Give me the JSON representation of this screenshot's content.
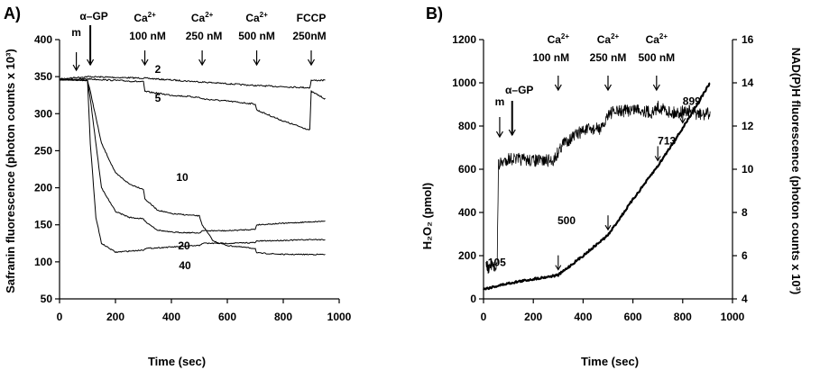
{
  "chart_data": [
    {
      "panel_label": "A)",
      "type": "line",
      "xlabel": "Time (sec)",
      "ylabel": "Safranin fluorescence (photon counts x 10³)",
      "xlim": [
        0,
        1000
      ],
      "ylim": [
        50,
        400
      ],
      "xticks": [
        0,
        200,
        400,
        600,
        800,
        1000
      ],
      "yticks": [
        50,
        100,
        150,
        200,
        250,
        300,
        350,
        400
      ],
      "grid": false,
      "additions": [
        {
          "label": "m",
          "x": 60
        },
        {
          "label": "α–GP",
          "x": 110
        },
        {
          "label": "Ca",
          "sup": "2+",
          "sub": "100 nM",
          "x": 305
        },
        {
          "label": "Ca",
          "sup": "2+",
          "sub": "250 nM",
          "x": 510
        },
        {
          "label": "Ca",
          "sup": "2+",
          "sub": "500 nM",
          "x": 705
        },
        {
          "label": "FCCP",
          "sub": "250nM",
          "x": 900
        }
      ],
      "series": [
        {
          "name": "2",
          "x": [
            0,
            100,
            300,
            500,
            700,
            895,
            900,
            950
          ],
          "y": [
            347,
            350,
            348,
            343,
            338,
            335,
            345,
            345
          ]
        },
        {
          "name": "5",
          "x": [
            0,
            100,
            300,
            305,
            400,
            500,
            510,
            600,
            700,
            705,
            800,
            895,
            900,
            950
          ],
          "y": [
            346,
            347,
            343,
            330,
            325,
            322,
            320,
            317,
            313,
            305,
            290,
            278,
            330,
            320
          ]
        },
        {
          "name": "10",
          "x": [
            0,
            100,
            110,
            150,
            200,
            250,
            300,
            305,
            350,
            400,
            500,
            510,
            550,
            600,
            700,
            705,
            800,
            900,
            950
          ],
          "y": [
            346,
            345,
            330,
            260,
            220,
            205,
            198,
            185,
            170,
            165,
            162,
            150,
            128,
            122,
            118,
            112,
            110,
            110,
            110
          ]
        },
        {
          "name": "20",
          "x": [
            0,
            100,
            110,
            150,
            200,
            250,
            300,
            305,
            350,
            400,
            500,
            510,
            600,
            700,
            705,
            800,
            900,
            950
          ],
          "y": [
            346,
            345,
            320,
            200,
            168,
            160,
            158,
            155,
            143,
            140,
            139,
            142,
            142,
            144,
            150,
            152,
            154,
            155
          ]
        },
        {
          "name": "40",
          "x": [
            0,
            100,
            110,
            130,
            150,
            200,
            300,
            305,
            400,
            500,
            510,
            600,
            700,
            705,
            800,
            900,
            950
          ],
          "y": [
            346,
            345,
            260,
            160,
            125,
            113,
            116,
            118,
            120,
            122,
            125,
            125,
            126,
            128,
            129,
            130,
            130
          ]
        }
      ]
    },
    {
      "panel_label": "B)",
      "type": "line",
      "xlabel": "Time (sec)",
      "ylabel": "H₂O₂ (pmol)",
      "y2label": "NAD(P)H fluorescence (photon counts x 10³)",
      "xlim": [
        0,
        1000
      ],
      "ylim": [
        0,
        1200
      ],
      "y2lim": [
        4,
        16
      ],
      "xticks": [
        0,
        200,
        400,
        600,
        800,
        1000
      ],
      "yticks": [
        0,
        200,
        400,
        600,
        800,
        1000,
        1200
      ],
      "y2ticks": [
        4,
        6,
        8,
        10,
        12,
        14,
        16
      ],
      "grid": false,
      "additions": [
        {
          "label": "m",
          "x": 65
        },
        {
          "label": "α–GP",
          "x": 115
        },
        {
          "label": "Ca",
          "sup": "2+",
          "sub": "100 nM",
          "x": 300
        },
        {
          "label": "Ca",
          "sup": "2+",
          "sub": "250 nM",
          "x": 500
        },
        {
          "label": "Ca",
          "sup": "2+",
          "sub": "500 nM",
          "x": 695
        }
      ],
      "series": [
        {
          "name": "H₂O₂",
          "axis": "left",
          "x": [
            0,
            100,
            200,
            300,
            400,
            500,
            600,
            700,
            800,
            910
          ],
          "y": [
            45,
            72,
            92,
            110,
            200,
            295,
            460,
            615,
            790,
            1000
          ]
        },
        {
          "name": "NAD(P)H",
          "axis": "right",
          "x": [
            10,
            20,
            40,
            55,
            60,
            100,
            200,
            280,
            320,
            400,
            480,
            500,
            560,
            620,
            680,
            700,
            760,
            820,
            880,
            910
          ],
          "y": [
            5.6,
            5.4,
            5.5,
            5.6,
            10.2,
            10.5,
            10.4,
            10.4,
            11.2,
            11.8,
            11.9,
            12.6,
            12.7,
            12.8,
            12.6,
            12.9,
            12.6,
            12.7,
            12.5,
            12.6
          ]
        }
      ],
      "data_labels": [
        {
          "text": "105",
          "x": 300
        },
        {
          "text": "500",
          "x": 500
        },
        {
          "text": "713",
          "x": 700
        },
        {
          "text": "899",
          "x": 800
        }
      ]
    }
  ]
}
